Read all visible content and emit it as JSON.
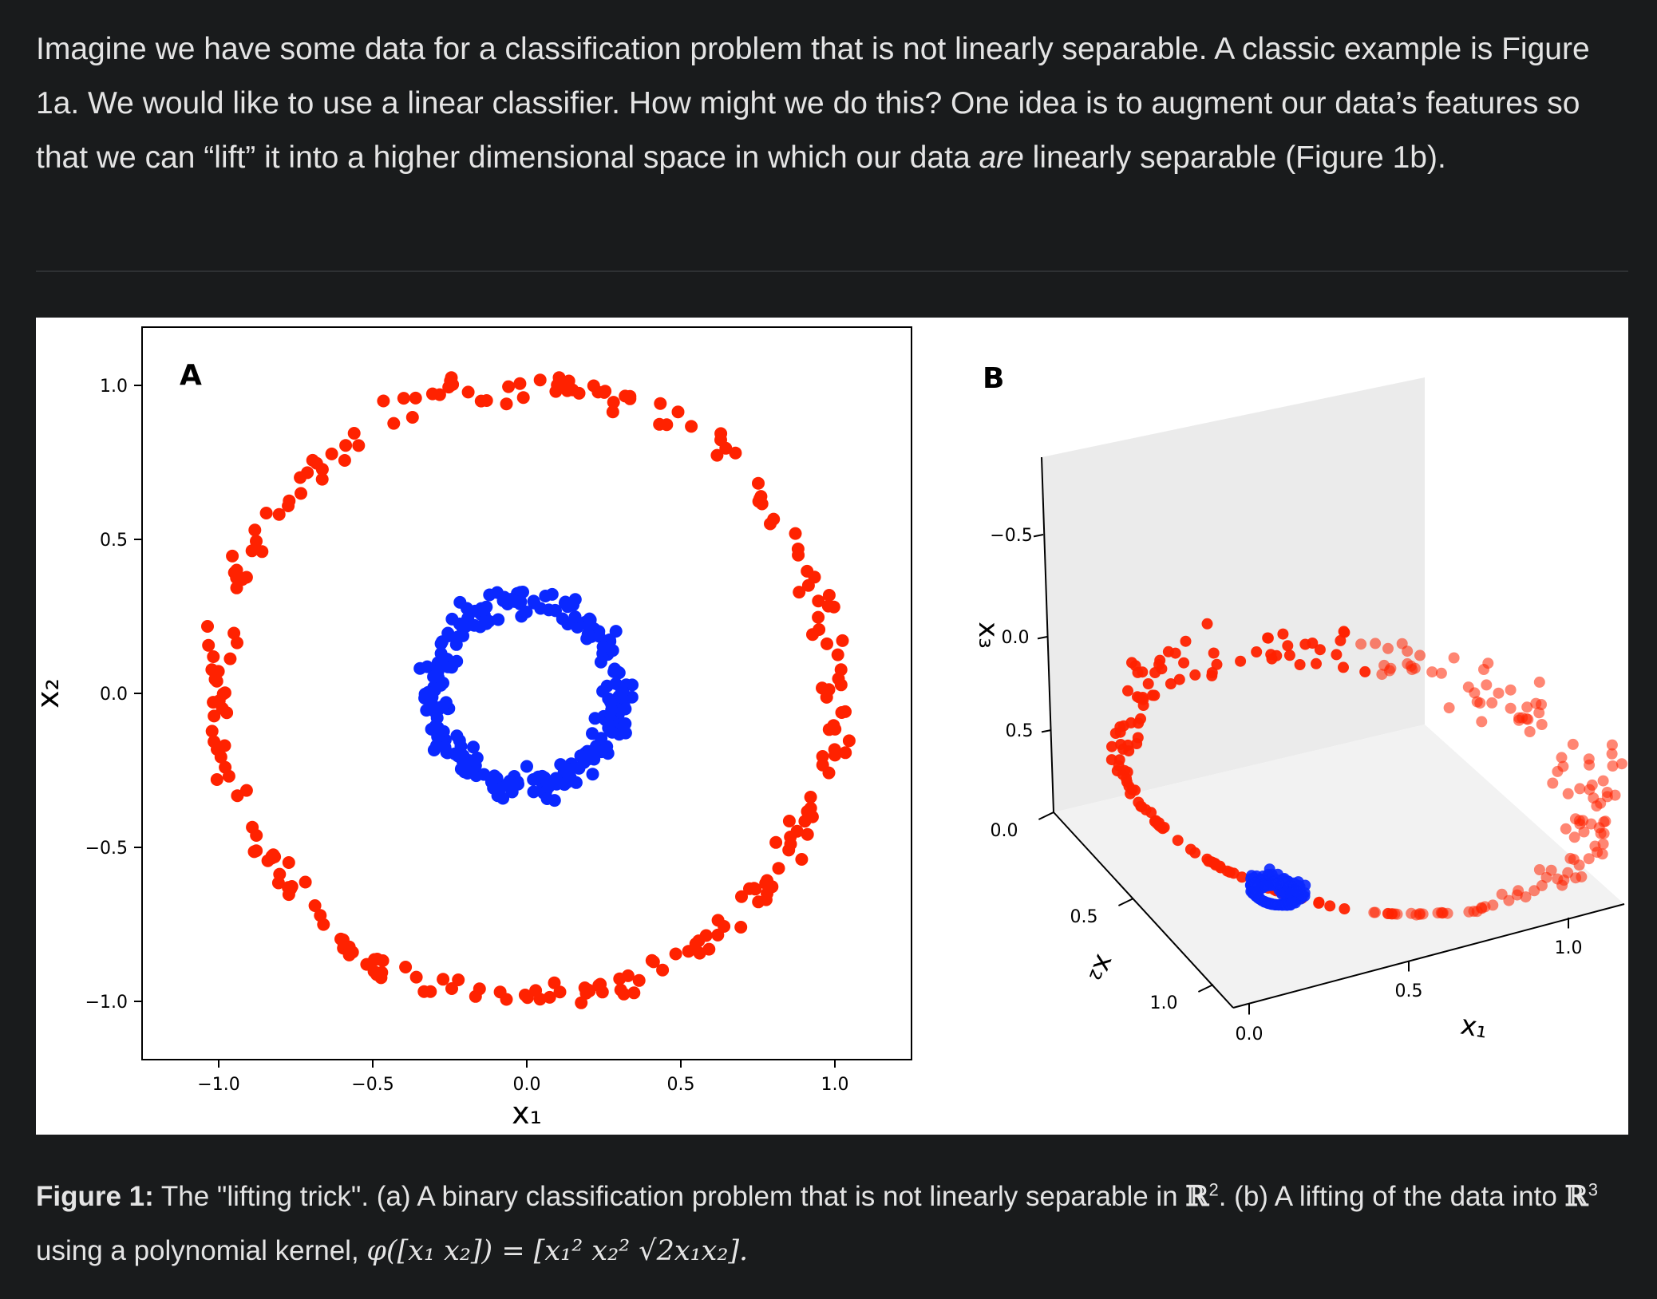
{
  "intro": {
    "part1": "Imagine we have some data for a classification problem that is not linearly separable. A classic example is Figure ",
    "fig1a": "1a",
    "part2": ". We would like to use a linear classifier. How might we do this? One idea is to augment our data’s features so that we can “lift” it into a higher dimensional space in which our data ",
    "emph": "are",
    "part3": " linearly separable (Figure ",
    "fig1b": "1b",
    "part4": ")."
  },
  "caption": {
    "label": "Figure 1:",
    "text1": " The \"lifting trick\". (a) A binary classification problem that is not linearly separable in ",
    "r2": "ℝ",
    "r2_exp": "2",
    "text2": ". (b) A lifting of the data into ",
    "r3": "ℝ",
    "r3_exp": "3",
    "text3": " using a polynomial kernel, ",
    "formula": "φ([x₁  x₂]) = [x₁²  x₂²  √2x₁x₂]."
  },
  "colors": {
    "outer": "#ff2200",
    "inner": "#0a28ff",
    "page_bg": "#191b1c"
  },
  "chart_data": [
    {
      "type": "scatter",
      "panel_label": "A",
      "xlabel": "x₁",
      "ylabel": "x₂",
      "xlim": [
        -1.2,
        1.2
      ],
      "ylim": [
        -1.2,
        1.2
      ],
      "xticks": [
        "−1.0",
        "−0.5",
        "0.0",
        "0.5",
        "1.0"
      ],
      "xtick_values": [
        -1.0,
        -0.5,
        0.0,
        0.5,
        1.0
      ],
      "yticks": [
        "1.0",
        "0.5",
        "0.0",
        "−0.5",
        "−1.0"
      ],
      "ytick_values": [
        1.0,
        0.5,
        0.0,
        -0.5,
        -1.0
      ],
      "series": [
        {
          "class": "outer",
          "color": "#ff2200",
          "radius_mean": 1.0,
          "radius_noise": 0.05,
          "count": 250
        },
        {
          "class": "inner",
          "color": "#0a28ff",
          "radius_mean": 0.3,
          "radius_noise": 0.05,
          "count": 250
        }
      ]
    },
    {
      "type": "scatter3d",
      "panel_label": "B",
      "xlabel": "x₁",
      "ylabel": "x₂",
      "zlabel": "x₃",
      "x_ticks": [
        "0.0",
        "0.5",
        "1.0"
      ],
      "y_ticks": [
        "0.0",
        "0.5",
        "1.0"
      ],
      "z_ticks": [
        "−0.5",
        "0.0",
        "0.5"
      ],
      "series": [
        {
          "class": "outer",
          "color": "#ff2200",
          "mapping": "[x1², x2², √2·x1·x2]"
        },
        {
          "class": "inner",
          "color": "#0a28ff",
          "mapping": "[x1², x2², √2·x1·x2]"
        }
      ]
    }
  ]
}
